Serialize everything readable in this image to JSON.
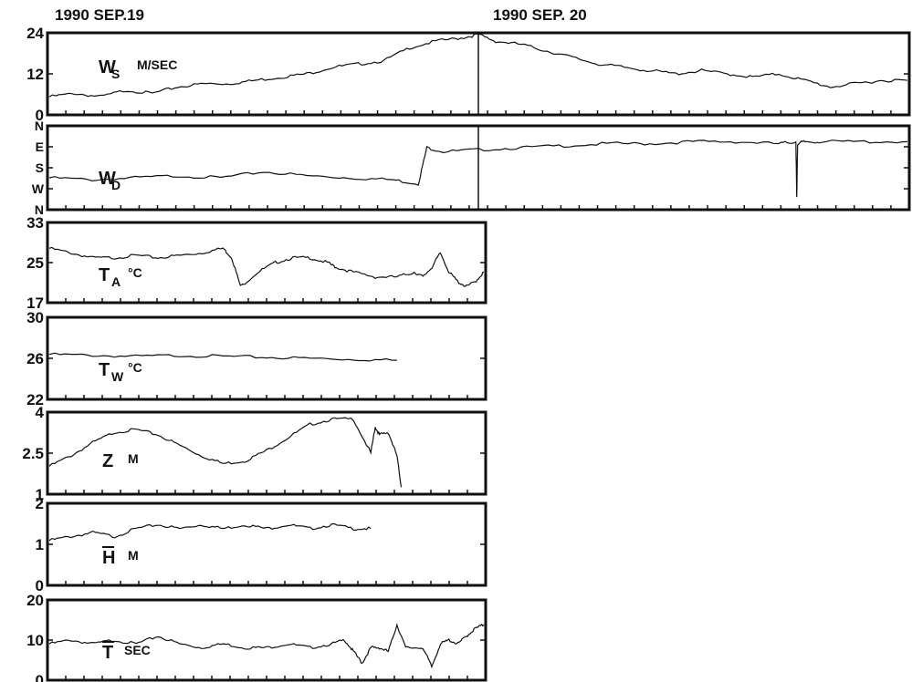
{
  "header": {
    "date_left": "1990 SEP.19",
    "date_right": "1990 SEP. 20"
  },
  "colors": {
    "ink": "#111111",
    "background": "#ffffff"
  },
  "chart_data": [
    {
      "type": "line",
      "id": "ws",
      "var": "W",
      "sub": "S",
      "unit": "M/SEC",
      "ylim": [
        0,
        24
      ],
      "yticks": [
        "24",
        "12",
        "0"
      ],
      "x_extent": [
        0,
        1
      ],
      "series": [
        {
          "x": [
            0.0,
            0.03,
            0.06,
            0.09,
            0.12,
            0.15,
            0.18,
            0.21,
            0.24,
            0.27,
            0.3,
            0.33,
            0.36,
            0.39,
            0.42,
            0.45,
            0.48,
            0.5,
            0.52,
            0.55,
            0.58,
            0.61,
            0.64,
            0.67,
            0.7,
            0.73,
            0.76,
            0.79,
            0.82,
            0.85,
            0.88,
            0.91,
            0.94,
            0.97,
            1.0
          ],
          "y": [
            5,
            6,
            5,
            7,
            6,
            8,
            9,
            9,
            10,
            11,
            12,
            14,
            15,
            16,
            20,
            22,
            23,
            24,
            22,
            21,
            19,
            17,
            15,
            14,
            13,
            12,
            13,
            12,
            11,
            12,
            10,
            8,
            9,
            10,
            10
          ]
        }
      ]
    },
    {
      "type": "line",
      "id": "wd",
      "var": "W",
      "sub": "D",
      "unit": "",
      "ylim": [
        0,
        4
      ],
      "yticks": [
        "N",
        "E",
        "S",
        "W",
        "N"
      ],
      "x_extent": [
        0,
        1
      ],
      "series": [
        {
          "x": [
            0.0,
            0.05,
            0.1,
            0.15,
            0.2,
            0.25,
            0.3,
            0.35,
            0.4,
            0.43,
            0.44,
            0.46,
            0.5,
            0.55,
            0.6,
            0.65,
            0.7,
            0.75,
            0.8,
            0.85,
            0.87,
            0.871,
            0.872,
            0.88,
            0.9,
            0.95,
            1.0
          ],
          "y": [
            1.5,
            1.4,
            1.5,
            1.6,
            1.5,
            1.8,
            1.6,
            1.5,
            1.4,
            1.2,
            3.0,
            2.8,
            2.9,
            3.0,
            3.1,
            3.2,
            3.2,
            3.3,
            3.3,
            3.2,
            3.3,
            0.5,
            3.2,
            3.3,
            3.3,
            3.3,
            3.3
          ]
        }
      ]
    },
    {
      "type": "line",
      "id": "ta",
      "var": "T",
      "sub": "A",
      "unit": "°C",
      "ylim": [
        17,
        33
      ],
      "yticks": [
        "33",
        "25",
        "17"
      ],
      "x_extent": [
        0,
        1
      ],
      "series": [
        {
          "x": [
            0.0,
            0.05,
            0.1,
            0.15,
            0.2,
            0.25,
            0.3,
            0.35,
            0.4,
            0.42,
            0.44,
            0.48,
            0.52,
            0.56,
            0.6,
            0.64,
            0.66,
            0.7,
            0.75,
            0.8,
            0.84,
            0.86,
            0.88,
            0.9,
            0.92,
            0.94,
            0.96,
            0.98,
            1.0
          ],
          "y": [
            28,
            27,
            26,
            26,
            26.5,
            26,
            26.5,
            27,
            28,
            26,
            20,
            23,
            25,
            26,
            26,
            25,
            24,
            23,
            22,
            22,
            23,
            22,
            24,
            27,
            23,
            21,
            20,
            21,
            23
          ]
        }
      ]
    },
    {
      "type": "line",
      "id": "tw",
      "var": "T",
      "sub": "W",
      "unit": "°C",
      "ylim": [
        22,
        30
      ],
      "yticks": [
        "30",
        "26",
        "22"
      ],
      "x_extent": [
        0,
        0.8
      ],
      "series": [
        {
          "x": [
            0.0,
            0.1,
            0.2,
            0.3,
            0.4,
            0.5,
            0.6,
            0.7,
            0.8
          ],
          "y": [
            26.4,
            26.3,
            26.2,
            26.3,
            26.2,
            26.1,
            26.0,
            25.9,
            25.8
          ]
        }
      ]
    },
    {
      "type": "line",
      "id": "z",
      "var": "Z",
      "sub": "",
      "unit": "M",
      "ylim": [
        1,
        4
      ],
      "yticks": [
        "4",
        "2.5",
        "1"
      ],
      "x_extent": [
        0,
        0.81
      ],
      "series": [
        {
          "x": [
            0.0,
            0.05,
            0.1,
            0.15,
            0.2,
            0.25,
            0.3,
            0.35,
            0.4,
            0.45,
            0.5,
            0.55,
            0.6,
            0.65,
            0.7,
            0.74,
            0.75,
            0.76,
            0.78,
            0.8,
            0.81
          ],
          "y": [
            2.0,
            2.4,
            2.9,
            3.3,
            3.4,
            3.2,
            2.8,
            2.4,
            2.1,
            2.2,
            2.6,
            3.1,
            3.6,
            3.8,
            3.8,
            2.5,
            3.5,
            3.2,
            3.3,
            2.4,
            1.2
          ]
        }
      ]
    },
    {
      "type": "line",
      "id": "h",
      "var": "H",
      "sub": "",
      "overbar": true,
      "unit": "M",
      "ylim": [
        0,
        2
      ],
      "yticks": [
        "2",
        "1",
        "0"
      ],
      "x_extent": [
        0,
        0.77
      ],
      "series": [
        {
          "x": [
            0.0,
            0.05,
            0.1,
            0.15,
            0.2,
            0.25,
            0.3,
            0.35,
            0.4,
            0.45,
            0.5,
            0.55,
            0.6,
            0.65,
            0.7,
            0.74
          ],
          "y": [
            1.1,
            1.2,
            1.3,
            1.2,
            1.4,
            1.5,
            1.4,
            1.5,
            1.4,
            1.5,
            1.4,
            1.5,
            1.4,
            1.5,
            1.4,
            1.4
          ]
        }
      ]
    },
    {
      "type": "line",
      "id": "t",
      "var": "T",
      "sub": "",
      "overbar": true,
      "unit": "SEC",
      "ylim": [
        0,
        20
      ],
      "yticks": [
        "20",
        "10",
        "0"
      ],
      "x_extent": [
        0,
        1
      ],
      "series": [
        {
          "x": [
            0.0,
            0.05,
            0.1,
            0.15,
            0.2,
            0.25,
            0.3,
            0.35,
            0.4,
            0.45,
            0.5,
            0.55,
            0.6,
            0.65,
            0.68,
            0.7,
            0.72,
            0.74,
            0.76,
            0.78,
            0.8,
            0.82,
            0.86,
            0.88,
            0.9,
            0.92,
            0.94,
            0.96,
            0.98,
            1.0
          ],
          "y": [
            9,
            10,
            9,
            10,
            9,
            11,
            9,
            8,
            9,
            8,
            8,
            9,
            8,
            9,
            10,
            7,
            4,
            8,
            8,
            7,
            14,
            8,
            8,
            3,
            9,
            10,
            9,
            11,
            13,
            14
          ]
        }
      ]
    }
  ]
}
